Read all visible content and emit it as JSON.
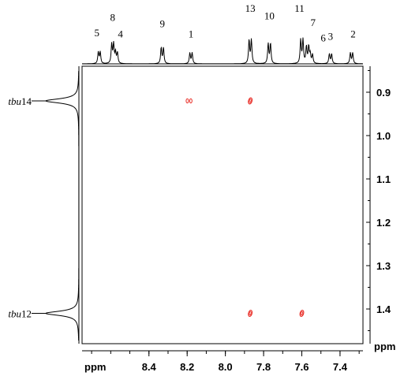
{
  "chart_data": {
    "type": "scatter",
    "title": "",
    "x_axis": {
      "unit_label": "ppm",
      "range": [
        8.75,
        7.28
      ],
      "reversed": true,
      "ticks": [
        8.4,
        8.2,
        8.0,
        7.8,
        7.6,
        7.4
      ],
      "tick_labels": [
        "8.4",
        "8.2",
        "8.0",
        "7.8",
        "7.6",
        "7.4"
      ]
    },
    "y_axis": {
      "unit_label": "ppm",
      "range": [
        0.84,
        1.48
      ],
      "ticks": [
        0.9,
        1.0,
        1.1,
        1.2,
        1.3,
        1.4
      ],
      "tick_labels": [
        "0.9",
        "1.0",
        "1.1",
        "1.2",
        "1.3",
        "1.4"
      ]
    },
    "top_spectrum_peaks": [
      {
        "label": "5",
        "shift": 8.66,
        "height": 0.45,
        "split": 0.01
      },
      {
        "label": "8",
        "shift": 8.59,
        "height": 0.75,
        "split": 0.01
      },
      {
        "label": "4",
        "shift": 8.57,
        "height": 0.42,
        "split": 0.01
      },
      {
        "label": "9",
        "shift": 8.33,
        "height": 0.62,
        "split": 0.012
      },
      {
        "label": "1",
        "shift": 8.18,
        "height": 0.42,
        "split": 0.012
      },
      {
        "label": "13",
        "shift": 7.87,
        "height": 0.92,
        "split": 0.012
      },
      {
        "label": "10",
        "shift": 7.77,
        "height": 0.78,
        "split": 0.012
      },
      {
        "label": "11",
        "shift": 7.6,
        "height": 0.92,
        "split": 0.012
      },
      {
        "label": "7",
        "shift": 7.57,
        "height": 0.65,
        "split": 0.012
      },
      {
        "label": "6",
        "shift": 7.55,
        "height": 0.35,
        "split": 0.012
      },
      {
        "label": "3",
        "shift": 7.45,
        "height": 0.38,
        "split": 0.012
      },
      {
        "label": "2",
        "shift": 7.34,
        "height": 0.42,
        "split": 0.012
      }
    ],
    "side_spectrum_peaks": [
      {
        "label_prefix": "tbu",
        "label_number": "14",
        "shift": 0.92
      },
      {
        "label_prefix": "tbu",
        "label_number": "12",
        "shift": 1.41
      }
    ],
    "cross_peaks": [
      {
        "x": 8.19,
        "y": 0.92,
        "shape": "double"
      },
      {
        "x": 7.87,
        "y": 0.92,
        "shape": "single"
      },
      {
        "x": 7.87,
        "y": 1.41,
        "shape": "single"
      },
      {
        "x": 7.6,
        "y": 1.41,
        "shape": "single"
      }
    ],
    "cross_peak_color": "#e8261f",
    "grid": false,
    "legend": "none"
  }
}
